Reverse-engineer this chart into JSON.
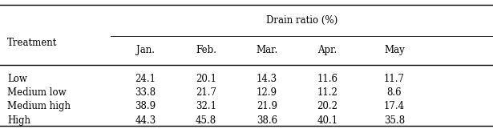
{
  "title": "Drain ratio (%)",
  "col_headers": [
    "Jan.",
    "Feb.",
    "Mar.",
    "Apr.",
    "May"
  ],
  "row_labels": [
    "Low",
    "Medium low",
    "Medium high",
    "High"
  ],
  "data": [
    [
      24.1,
      20.1,
      14.3,
      11.6,
      11.7
    ],
    [
      33.8,
      21.7,
      12.9,
      11.2,
      8.6
    ],
    [
      38.9,
      32.1,
      21.9,
      20.2,
      17.4
    ],
    [
      44.3,
      45.8,
      38.6,
      40.1,
      35.8
    ]
  ],
  "bg_color": "#ffffff",
  "text_color": "#000000",
  "font_size": 8.5,
  "figsize": [
    6.15,
    1.61
  ],
  "dpi": 100
}
